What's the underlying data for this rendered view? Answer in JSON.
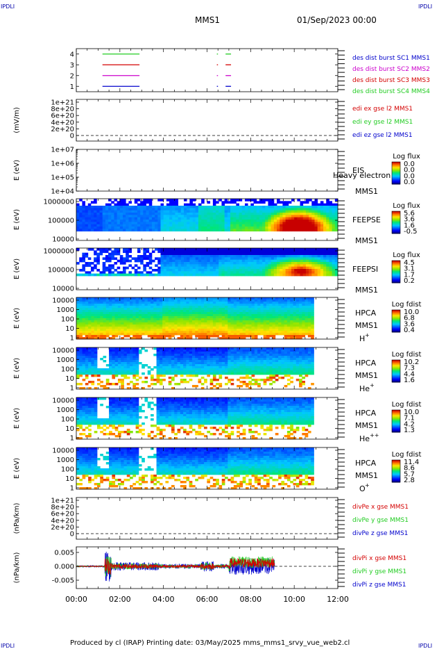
{
  "header": {
    "corner_left": "IPDLI",
    "corner_right": "IPDLI",
    "spacecraft": "MMS1",
    "datetime": "01/Sep/2023 00:00"
  },
  "footer": {
    "corner_left": "IPDLI",
    "corner_right": "IPDLI",
    "credit": "Produced by cl (IRAP)   Printing date: 03/May/2025   mms_mms1_srvy_vue_web2.cl"
  },
  "colors": {
    "red": "#d40000",
    "green": "#22cc22",
    "magenta": "#cc00cc",
    "blue": "#0000cc",
    "header_blue": "#0000aa"
  },
  "chart_data": [
    {
      "id": "burst",
      "type": "line",
      "y_ticks": [
        "1",
        "2",
        "3",
        "4"
      ],
      "ylim": [
        0.5,
        4.5
      ],
      "legend": [
        "des dist burst SC1 MMS1",
        "des dist burst SC2 MMS2",
        "des dist burst SC3 MMS3",
        "des dist burst SC4 MMS4"
      ],
      "legend_colors": [
        "#0000cc",
        "#cc00cc",
        "#d40000",
        "#22cc22"
      ],
      "intervals": [
        {
          "level": 4,
          "color": "#22cc22",
          "spans": [
            [
              1.2,
              2.9
            ],
            [
              6.45,
              6.5
            ],
            [
              6.85,
              7.1
            ]
          ]
        },
        {
          "level": 3,
          "color": "#d40000",
          "spans": [
            [
              1.2,
              2.9
            ],
            [
              6.45,
              6.5
            ],
            [
              6.85,
              7.1
            ]
          ]
        },
        {
          "level": 2,
          "color": "#cc00cc",
          "spans": [
            [
              1.2,
              2.9
            ],
            [
              6.45,
              6.5
            ],
            [
              6.85,
              7.1
            ]
          ]
        },
        {
          "level": 1,
          "color": "#0000cc",
          "spans": [
            [
              1.2,
              2.9
            ],
            [
              6.45,
              6.5
            ],
            [
              6.85,
              7.1
            ]
          ]
        }
      ]
    },
    {
      "id": "edi",
      "type": "line",
      "ylabel": "(mV/m)",
      "y_ticks": [
        "1e+21",
        "8e+20",
        "6e+20",
        "4e+20",
        "2e+20",
        "0"
      ],
      "legend": [
        "edi ex gse l2 MMS1",
        "edi ey gse l2 MMS1",
        "edi ez gse l2 MMS1"
      ],
      "legend_colors": [
        "#d40000",
        "#22cc22",
        "#0000cc"
      ]
    },
    {
      "id": "eis",
      "type": "heatmap",
      "ylabel": "E (eV)",
      "y_ticks": [
        "1e+07",
        "1e+06",
        "1e+05",
        "1e+04"
      ],
      "instrument": "EIS",
      "spacecraft": "MMS1",
      "overlay_label": "Heavy electron to",
      "colorbar_title": "Log flux",
      "colorbar_ticks": [
        "0.0",
        "0.0",
        "0.0",
        "0.0"
      ]
    },
    {
      "id": "feepse",
      "type": "heatmap",
      "ylabel": "E (eV)",
      "y_ticks": [
        "1000000",
        "100000",
        "10000"
      ],
      "instrument": "FEEPSE",
      "spacecraft": "MMS1",
      "colorbar_title": "Log flux",
      "colorbar_ticks": [
        "5.6",
        "3.6",
        "1.6",
        "-0.5"
      ]
    },
    {
      "id": "feepsi",
      "type": "heatmap",
      "ylabel": "E (eV)",
      "y_ticks": [
        "1000000",
        "100000",
        "10000"
      ],
      "instrument": "FEEPSI",
      "spacecraft": "MMS1",
      "colorbar_title": "Log flux",
      "colorbar_ticks": [
        "4.5",
        "3.1",
        "1.7",
        "0.2"
      ]
    },
    {
      "id": "hpca_h",
      "type": "heatmap",
      "ylabel": "E (eV)",
      "y_ticks": [
        "10000",
        "1000",
        "100",
        "10",
        "1"
      ],
      "instrument": "HPCA",
      "spacecraft": "MMS1",
      "species": "H",
      "species_sup": "+",
      "colorbar_title": "Log fdist",
      "colorbar_ticks": [
        "10.0",
        "6.8",
        "3.6",
        "0.4"
      ]
    },
    {
      "id": "hpca_he",
      "type": "heatmap",
      "ylabel": "E (eV)",
      "y_ticks": [
        "10000",
        "1000",
        "100",
        "10",
        "1"
      ],
      "instrument": "HPCA",
      "spacecraft": "MMS1",
      "species": "He",
      "species_sup": "+",
      "colorbar_title": "Log fdist",
      "colorbar_ticks": [
        "10.2",
        "7.3",
        "4.4",
        "1.6"
      ]
    },
    {
      "id": "hpca_he2",
      "type": "heatmap",
      "ylabel": "E (eV)",
      "y_ticks": [
        "10000",
        "1000",
        "100",
        "10",
        "1"
      ],
      "instrument": "HPCA",
      "spacecraft": "MMS1",
      "species": "He",
      "species_sup": "++",
      "colorbar_title": "Log fdist",
      "colorbar_ticks": [
        "10.0",
        "7.1",
        "4.2",
        "1.3"
      ]
    },
    {
      "id": "hpca_o",
      "type": "heatmap",
      "ylabel": "E (eV)",
      "y_ticks": [
        "10000",
        "1000",
        "100",
        "10",
        "1"
      ],
      "instrument": "HPCA",
      "spacecraft": "MMS1",
      "species": "O",
      "species_sup": "+",
      "colorbar_title": "Log fdist",
      "colorbar_ticks": [
        "11.4",
        "8.6",
        "5.7",
        "2.8"
      ]
    },
    {
      "id": "divpe",
      "type": "line",
      "ylabel": "(nPa/km)",
      "y_ticks": [
        "1e+21",
        "8e+20",
        "6e+20",
        "4e+20",
        "2e+20",
        "0"
      ],
      "legend": [
        "divPe x gse MMS1",
        "divPe y gse MMS1",
        "divPe z gse MMS1"
      ],
      "legend_colors": [
        "#d40000",
        "#22cc22",
        "#0000cc"
      ]
    },
    {
      "id": "divpi",
      "type": "line",
      "ylabel": "(nPa/km)",
      "y_ticks": [
        "0.005",
        "0.000",
        "-0.005"
      ],
      "ylim": [
        -0.008,
        0.007
      ],
      "legend": [
        "divPi x gse MMS1",
        "divPi y gse MMS1",
        "divPi z gse MMS1"
      ],
      "legend_colors": [
        "#d40000",
        "#22cc22",
        "#0000cc"
      ]
    }
  ],
  "time_axis": {
    "xlim": [
      0,
      12
    ],
    "ticks": [
      0,
      2,
      4,
      6,
      8,
      10,
      12
    ],
    "tick_labels": [
      "00:00",
      "02:00",
      "04:00",
      "06:00",
      "08:00",
      "10:00",
      "12:00"
    ]
  }
}
